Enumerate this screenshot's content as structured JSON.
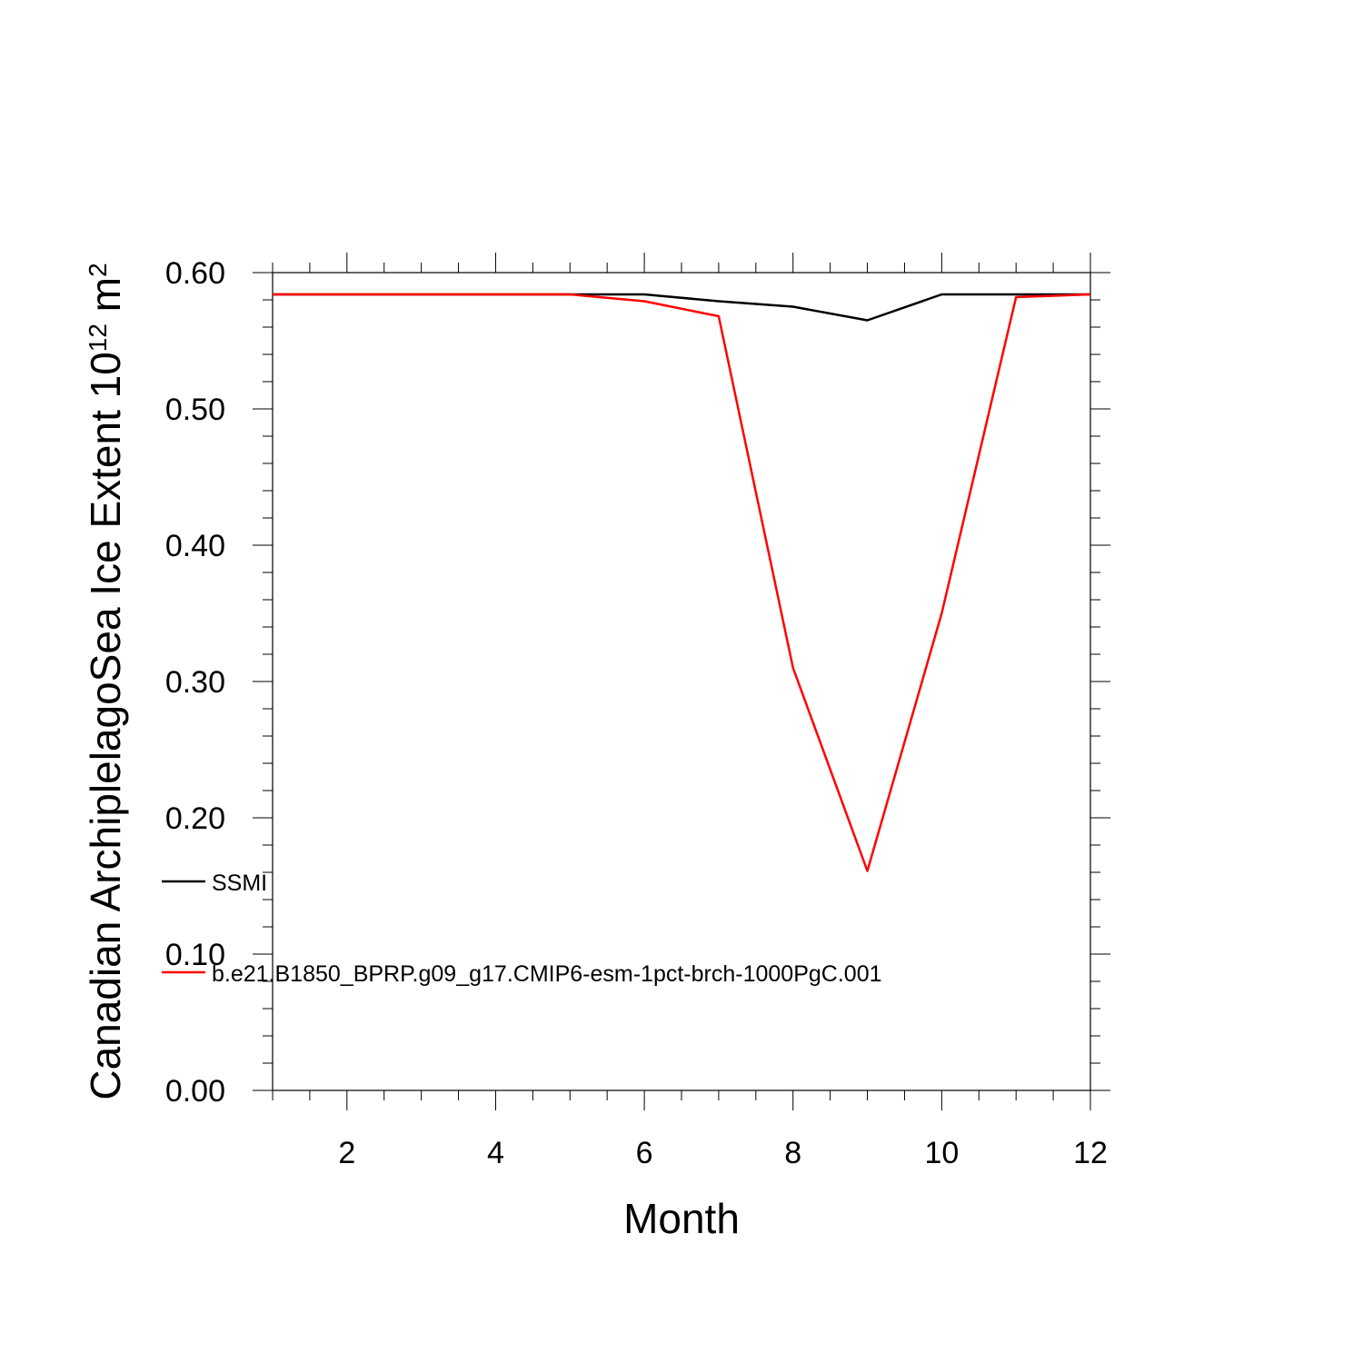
{
  "chart_data": {
    "type": "line",
    "title": "",
    "xlabel": "Month",
    "ylabel": {
      "main": "Canadian ArchiplelagoSea Ice Extent 10",
      "exp1": "12",
      "unit": " m",
      "exp2": "2"
    },
    "xlim": [
      1,
      12
    ],
    "ylim": [
      0,
      0.6
    ],
    "x_ticks": [
      2,
      4,
      6,
      8,
      10,
      12
    ],
    "x_tick_labels": [
      "2",
      "4",
      "6",
      "8",
      "10",
      "12"
    ],
    "y_ticks": [
      0,
      0.1,
      0.2,
      0.3,
      0.4,
      0.5,
      0.6
    ],
    "y_tick_labels": [
      "0.00",
      "0.10",
      "0.20",
      "0.30",
      "0.40",
      "0.50",
      "0.60"
    ],
    "grid": false,
    "legend_position": "left",
    "x": [
      1,
      2,
      3,
      4,
      5,
      6,
      7,
      8,
      9,
      10,
      11,
      12
    ],
    "series": [
      {
        "name": "SSMI",
        "color": "#000000",
        "values": [
          0.584,
          0.584,
          0.584,
          0.584,
          0.584,
          0.584,
          0.579,
          0.575,
          0.565,
          0.584,
          0.584,
          0.584
        ]
      },
      {
        "name": "b.e21.B1850_BPRP.g09_g17.CMIP6-esm-1pct-brch-1000PgC.001",
        "color": "#ff0000",
        "values": [
          0.584,
          0.584,
          0.584,
          0.584,
          0.584,
          0.579,
          0.568,
          0.31,
          0.161,
          0.35,
          0.582,
          0.584
        ]
      }
    ]
  }
}
